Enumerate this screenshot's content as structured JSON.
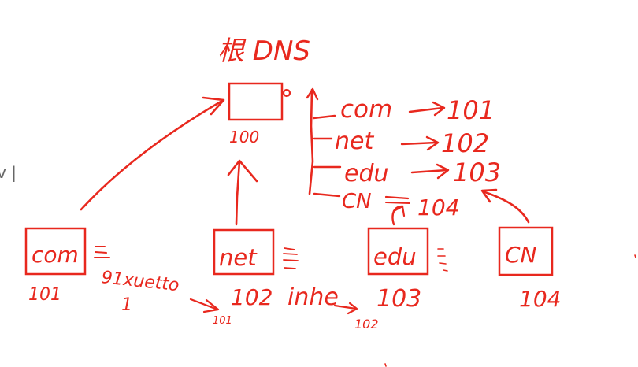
{
  "colors": {
    "ink": "#e8281e",
    "margin_mark": "#666666",
    "background": "#ffffff"
  },
  "root": {
    "title": "根 DNS",
    "id": "100"
  },
  "root_table": [
    {
      "label": "com",
      "target": "101"
    },
    {
      "label": "net",
      "target": "102"
    },
    {
      "label": "edu",
      "target": "103"
    },
    {
      "label": "CN",
      "target": "104"
    }
  ],
  "tld_servers": [
    {
      "label": "com",
      "id": "101"
    },
    {
      "label": "net",
      "id": "102"
    },
    {
      "label": "edu",
      "id": "103"
    },
    {
      "label": "CN",
      "id": "104"
    }
  ],
  "annotations": {
    "com_entry_name": "91xuetto",
    "com_entry_sub": "1",
    "com_entry_target": "101",
    "net_entry_name": "inhe",
    "net_entry_target": "102"
  },
  "margin_mark": "v |"
}
